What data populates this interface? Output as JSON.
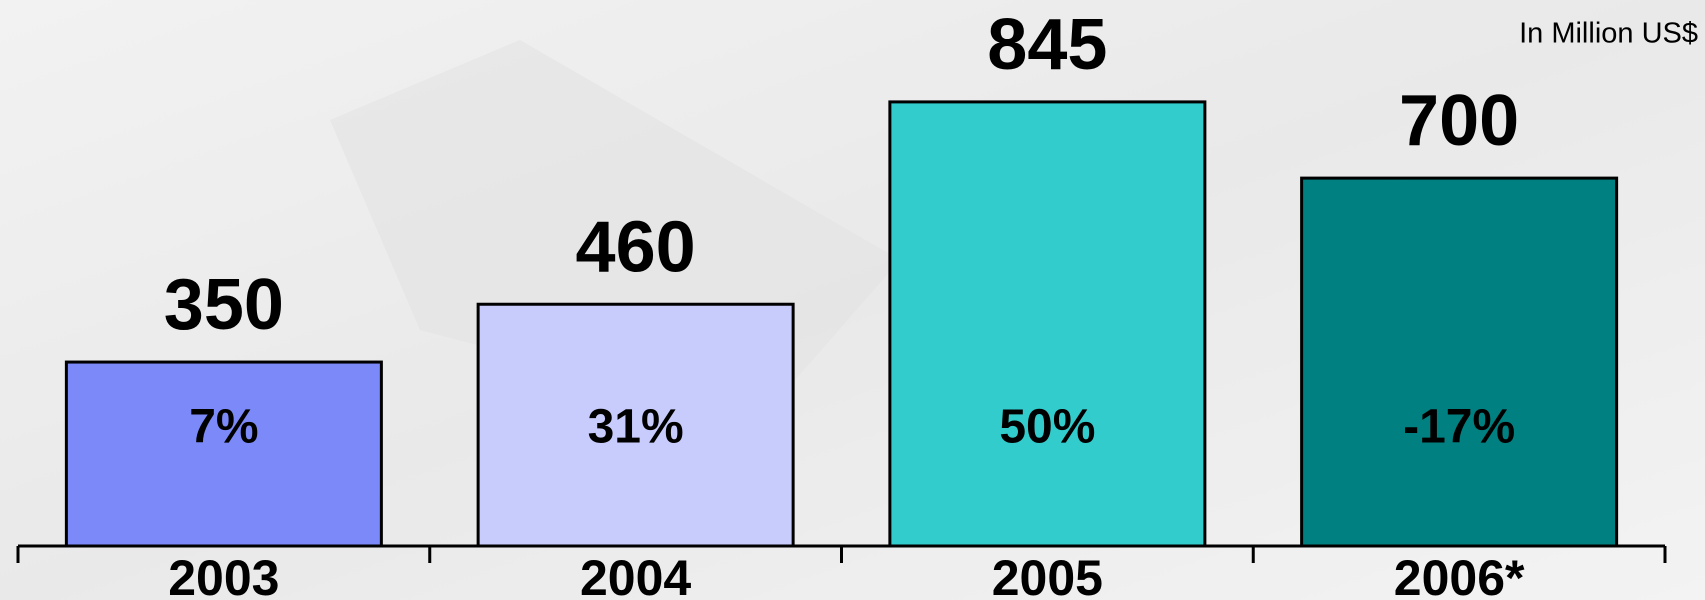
{
  "chart_data": {
    "type": "bar",
    "annotation": "In Million US$",
    "categories": [
      "2003",
      "2004",
      "2005",
      "2006*"
    ],
    "values": [
      350,
      460,
      845,
      700
    ],
    "colors": [
      "#7b8af8",
      "#c8ccfc",
      "#33cccc",
      "#008080"
    ],
    "growth": {
      "values": [
        7,
        31,
        50,
        -17
      ],
      "value_labels": [
        "7%",
        "31%",
        "50%",
        "-17%"
      ]
    },
    "ylim": [
      0,
      900
    ]
  }
}
